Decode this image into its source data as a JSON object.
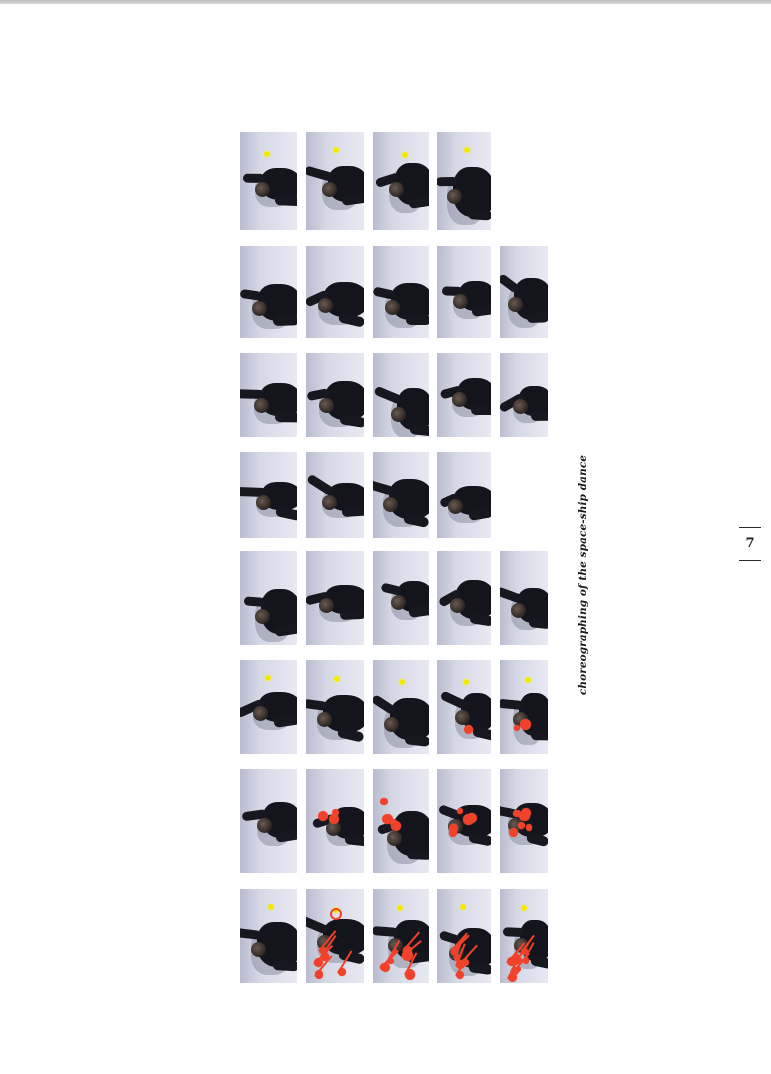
{
  "document": {
    "caption": "choreographing of the space-ship dance",
    "page_number": "7"
  },
  "photo_grid": {
    "rows": [
      {
        "frames": 4,
        "yellow_dot": true,
        "red_markers": false
      },
      {
        "frames": 5,
        "yellow_dot": false,
        "red_markers": false
      },
      {
        "frames": 5,
        "yellow_dot": false,
        "red_markers": false
      },
      {
        "frames": 4,
        "yellow_dot": false,
        "red_markers": false
      },
      {
        "frames": 5,
        "yellow_dot": false,
        "red_markers": false
      },
      {
        "frames": 5,
        "yellow_dot": true,
        "red_markers": true
      },
      {
        "frames": 5,
        "yellow_dot": false,
        "red_markers": true
      },
      {
        "frames": 5,
        "yellow_dot": true,
        "red_markers": true
      }
    ]
  },
  "colors": {
    "marker_yellow": "#f4e800",
    "marker_red": "#f0412a",
    "floor": "#d6d8e6",
    "dancer": "#14141c"
  }
}
